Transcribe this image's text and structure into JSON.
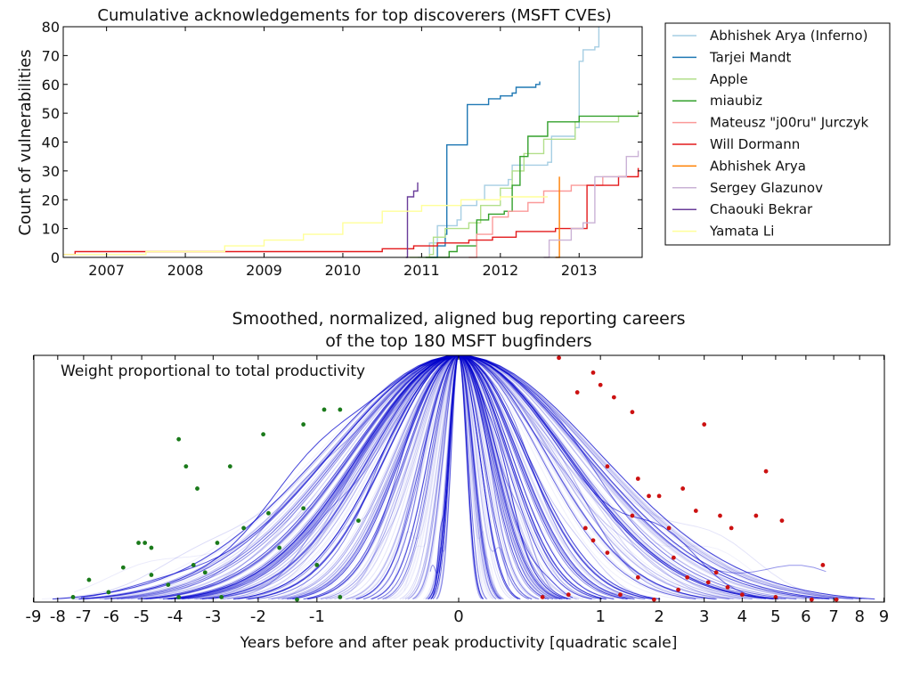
{
  "chart_data": [
    {
      "type": "line",
      "title": "Cumulative acknowledgements for top discoverers (MSFT CVEs)",
      "xlabel": "",
      "ylabel": "Count of vulnerabilities",
      "xlim": [
        2006.45,
        2013.8
      ],
      "ylim": [
        0,
        80
      ],
      "x_ticks": [
        "2007",
        "2008",
        "2009",
        "2010",
        "2011",
        "2012",
        "2013"
      ],
      "y_ticks": [
        "0",
        "10",
        "20",
        "30",
        "40",
        "50",
        "60",
        "70",
        "80"
      ],
      "legend_position": "outside-right",
      "grid": false,
      "series": [
        {
          "name": "Abhishek Arya (Inferno)",
          "color": "#a6cee3",
          "points": [
            [
              2010.95,
              0
            ],
            [
              2011.1,
              5
            ],
            [
              2011.2,
              11
            ],
            [
              2011.45,
              13
            ],
            [
              2011.5,
              18
            ],
            [
              2011.7,
              20
            ],
            [
              2011.8,
              25
            ],
            [
              2012.1,
              27
            ],
            [
              2012.15,
              32
            ],
            [
              2012.6,
              33
            ],
            [
              2012.65,
              42
            ],
            [
              2012.95,
              45
            ],
            [
              2013.0,
              68
            ],
            [
              2013.05,
              72
            ],
            [
              2013.2,
              73
            ],
            [
              2013.25,
              80
            ]
          ]
        },
        {
          "name": "Tarjei Mandt",
          "color": "#1f78b4",
          "points": [
            [
              2011.1,
              0
            ],
            [
              2011.2,
              4
            ],
            [
              2011.3,
              8
            ],
            [
              2011.32,
              39
            ],
            [
              2011.55,
              39
            ],
            [
              2011.58,
              53
            ],
            [
              2011.85,
              55
            ],
            [
              2012.0,
              56
            ],
            [
              2012.15,
              57
            ],
            [
              2012.2,
              59
            ],
            [
              2012.45,
              60
            ],
            [
              2012.5,
              61
            ]
          ]
        },
        {
          "name": "Apple",
          "color": "#b2df8a",
          "points": [
            [
              2010.85,
              0
            ],
            [
              2011.1,
              1
            ],
            [
              2011.15,
              7
            ],
            [
              2011.3,
              10
            ],
            [
              2011.6,
              12
            ],
            [
              2011.75,
              18
            ],
            [
              2012.0,
              24
            ],
            [
              2012.15,
              30
            ],
            [
              2012.3,
              36
            ],
            [
              2012.55,
              41
            ],
            [
              2012.95,
              47
            ],
            [
              2013.5,
              49
            ],
            [
              2013.75,
              51
            ]
          ]
        },
        {
          "name": "miaubiz",
          "color": "#33a02c",
          "points": [
            [
              2011.05,
              0
            ],
            [
              2011.35,
              2
            ],
            [
              2011.45,
              4
            ],
            [
              2011.7,
              13
            ],
            [
              2011.85,
              15
            ],
            [
              2012.05,
              16
            ],
            [
              2012.15,
              25
            ],
            [
              2012.25,
              35
            ],
            [
              2012.35,
              42
            ],
            [
              2012.6,
              47
            ],
            [
              2013.0,
              49
            ],
            [
              2013.75,
              49
            ]
          ]
        },
        {
          "name": "Mateusz \"j00ru\" Jurczyk",
          "color": "#fb9a99",
          "points": [
            [
              2011.6,
              0
            ],
            [
              2011.7,
              8
            ],
            [
              2011.9,
              14
            ],
            [
              2012.1,
              16
            ],
            [
              2012.35,
              19
            ],
            [
              2012.55,
              23
            ],
            [
              2012.9,
              25
            ],
            [
              2013.3,
              28
            ],
            [
              2013.75,
              31
            ]
          ]
        },
        {
          "name": "Will Dormann",
          "color": "#e31a1c",
          "points": [
            [
              2006.45,
              1
            ],
            [
              2006.6,
              2
            ],
            [
              2007.5,
              2
            ],
            [
              2008.5,
              2
            ],
            [
              2009.5,
              2
            ],
            [
              2010.5,
              3
            ],
            [
              2010.9,
              4
            ],
            [
              2011.2,
              5
            ],
            [
              2011.6,
              6
            ],
            [
              2011.9,
              7
            ],
            [
              2012.2,
              9
            ],
            [
              2012.7,
              10
            ],
            [
              2013.05,
              10
            ],
            [
              2013.1,
              25
            ],
            [
              2013.5,
              28
            ],
            [
              2013.75,
              31
            ]
          ]
        },
        {
          "name": "Abhishek Arya",
          "color": "#ff7f00",
          "points": [
            [
              2012.7,
              0
            ],
            [
              2012.75,
              5
            ],
            [
              2012.75,
              28
            ]
          ]
        },
        {
          "name": "Sergey Glazunov",
          "color": "#cab2d6",
          "points": [
            [
              2012.55,
              0
            ],
            [
              2012.62,
              6
            ],
            [
              2012.9,
              10
            ],
            [
              2013.05,
              12
            ],
            [
              2013.2,
              28
            ],
            [
              2013.6,
              35
            ],
            [
              2013.75,
              37
            ]
          ]
        },
        {
          "name": "Chaouki Bekrar",
          "color": "#6a3d9a",
          "points": [
            [
              2010.8,
              0
            ],
            [
              2010.82,
              21
            ],
            [
              2010.9,
              23
            ],
            [
              2010.95,
              26
            ]
          ]
        },
        {
          "name": "Yamata Li",
          "color": "#ffff99",
          "points": [
            [
              2006.45,
              1
            ],
            [
              2007.5,
              2
            ],
            [
              2008.5,
              4
            ],
            [
              2009.0,
              6
            ],
            [
              2009.5,
              8
            ],
            [
              2010.0,
              12
            ],
            [
              2010.5,
              16
            ],
            [
              2011.0,
              18
            ],
            [
              2011.5,
              20
            ],
            [
              2012.0,
              21
            ],
            [
              2012.6,
              21
            ]
          ]
        }
      ]
    },
    {
      "type": "line",
      "title": "Smoothed, normalized, aligned bug reporting careers\nof the top 180 MSFT bugfinders",
      "annotation": "Weight proportional to total productivity",
      "xlabel": "Years before and after peak productivity [quadratic scale]",
      "ylabel": "",
      "x_scale": "signed-sqrt",
      "xlim": [
        -9,
        9
      ],
      "ylim": [
        0,
        1
      ],
      "x_ticks": [
        -9,
        -8,
        -7,
        -6,
        -5,
        -4,
        -3,
        -2,
        -1,
        0,
        1,
        2,
        3,
        4,
        5,
        6,
        7,
        8,
        9
      ],
      "y_ticks": [],
      "line_color": "#0000cc",
      "start_marker_color": "#1a7a1a",
      "end_marker_color": "#cc1111",
      "curve_count": 180,
      "start_markers": [
        [
          -3.9,
          0.66
        ],
        [
          -3.7,
          0.55
        ],
        [
          -3.4,
          0.46
        ],
        [
          -2.6,
          0.55
        ],
        [
          -1.9,
          0.68
        ],
        [
          -1.2,
          0.72
        ],
        [
          -0.9,
          0.78
        ],
        [
          -0.7,
          0.78
        ],
        [
          -0.5,
          0.33
        ],
        [
          -1.0,
          0.15
        ],
        [
          -1.2,
          0.38
        ],
        [
          -1.8,
          0.36
        ],
        [
          -2.3,
          0.3
        ],
        [
          -2.9,
          0.24
        ],
        [
          -3.2,
          0.12
        ],
        [
          -4.7,
          0.22
        ],
        [
          -4.9,
          0.24
        ],
        [
          -5.1,
          0.24
        ],
        [
          -5.6,
          0.14
        ],
        [
          -6.1,
          0.04
        ],
        [
          -6.8,
          0.09
        ],
        [
          -7.4,
          0.02
        ],
        [
          -3.9,
          0.02
        ],
        [
          -2.8,
          0.02
        ],
        [
          -1.3,
          0.01
        ],
        [
          -0.7,
          0.02
        ],
        [
          -4.7,
          0.11
        ],
        [
          -3.5,
          0.15
        ],
        [
          -4.2,
          0.07
        ],
        [
          -1.6,
          0.22
        ]
      ],
      "end_markers": [
        [
          0.5,
          0.99
        ],
        [
          0.9,
          0.93
        ],
        [
          1.0,
          0.88
        ],
        [
          0.7,
          0.85
        ],
        [
          1.2,
          0.83
        ],
        [
          1.5,
          0.77
        ],
        [
          3.0,
          0.72
        ],
        [
          1.1,
          0.55
        ],
        [
          1.6,
          0.5
        ],
        [
          1.8,
          0.43
        ],
        [
          2.0,
          0.43
        ],
        [
          2.5,
          0.46
        ],
        [
          2.8,
          0.37
        ],
        [
          3.4,
          0.35
        ],
        [
          3.7,
          0.3
        ],
        [
          4.4,
          0.35
        ],
        [
          4.7,
          0.53
        ],
        [
          5.2,
          0.33
        ],
        [
          6.6,
          0.15
        ],
        [
          0.9,
          0.25
        ],
        [
          1.1,
          0.2
        ],
        [
          1.6,
          0.1
        ],
        [
          2.3,
          0.18
        ],
        [
          2.6,
          0.1
        ],
        [
          3.1,
          0.08
        ],
        [
          3.6,
          0.06
        ],
        [
          4.0,
          0.03
        ],
        [
          5.0,
          0.02
        ],
        [
          6.2,
          0.01
        ],
        [
          7.1,
          0.01
        ],
        [
          0.35,
          0.02
        ],
        [
          0.6,
          0.03
        ],
        [
          1.3,
          0.03
        ],
        [
          1.9,
          0.01
        ],
        [
          2.4,
          0.05
        ],
        [
          3.3,
          0.12
        ],
        [
          2.2,
          0.3
        ],
        [
          1.5,
          0.35
        ],
        [
          0.8,
          0.3
        ]
      ]
    }
  ]
}
